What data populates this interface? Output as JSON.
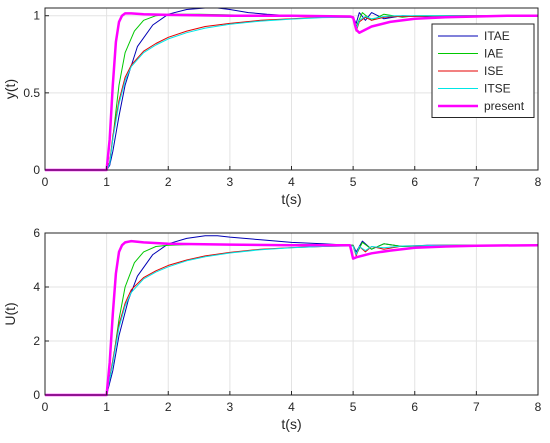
{
  "chart_data": [
    {
      "type": "line",
      "xlabel": "t(s)",
      "ylabel": "y(t)",
      "xlim": [
        0,
        8
      ],
      "ylim": [
        0,
        1.05
      ],
      "xticks": [
        "0",
        "1",
        "2",
        "3",
        "4",
        "5",
        "6",
        "7",
        "8"
      ],
      "yticks": [
        "0",
        "0.5",
        "1"
      ],
      "grid": true,
      "legend": "top-right",
      "series": [
        {
          "name": "ITAE",
          "color": "#0000b4",
          "line_width": "thin",
          "x": [
            0,
            1.0,
            1.05,
            1.1,
            1.2,
            1.3,
            1.5,
            1.75,
            2.0,
            2.3,
            2.6,
            2.8,
            3.0,
            3.3,
            3.6,
            4.0,
            4.5,
            4.95,
            5.0,
            5.05,
            5.1,
            5.2,
            5.3,
            5.5,
            5.8,
            6.2,
            6.6,
            7.0,
            8.0
          ],
          "y": [
            0,
            0,
            0.03,
            0.12,
            0.35,
            0.55,
            0.8,
            0.94,
            1.01,
            1.04,
            1.05,
            1.05,
            1.04,
            1.02,
            1.01,
            1.0,
            0.995,
            0.99,
            0.99,
            0.95,
            1.02,
            0.97,
            1.02,
            0.98,
            1.0,
            0.995,
            1.0,
            1.0,
            1.0
          ]
        },
        {
          "name": "IAE",
          "color": "#00c800",
          "line_width": "thin",
          "x": [
            0,
            1.0,
            1.05,
            1.1,
            1.15,
            1.2,
            1.3,
            1.45,
            1.6,
            1.8,
            2.0,
            2.5,
            3.0,
            3.5,
            4.0,
            4.5,
            4.95,
            5.0,
            5.05,
            5.15,
            5.3,
            5.5,
            5.8,
            6.0,
            6.5,
            7.0,
            8.0
          ],
          "y": [
            0,
            0,
            0.05,
            0.2,
            0.38,
            0.55,
            0.76,
            0.9,
            0.97,
            1.0,
            1.01,
            1.01,
            1.005,
            1.0,
            1.0,
            0.998,
            0.995,
            0.99,
            0.93,
            1.02,
            0.97,
            1.01,
            0.99,
            1.0,
            1.0,
            1.0,
            1.0
          ]
        },
        {
          "name": "ISE",
          "color": "#e60000",
          "line_width": "thin",
          "x": [
            0,
            1.0,
            1.05,
            1.1,
            1.2,
            1.3,
            1.4,
            1.6,
            1.8,
            2.0,
            2.3,
            2.6,
            3.0,
            3.5,
            4.0,
            4.5,
            4.95,
            5.0,
            5.05,
            5.1,
            5.2,
            5.3,
            5.5,
            5.7,
            6.0,
            6.5,
            7.0,
            8.0
          ],
          "y": [
            0,
            0,
            0.05,
            0.22,
            0.45,
            0.6,
            0.68,
            0.77,
            0.82,
            0.86,
            0.9,
            0.93,
            0.95,
            0.97,
            0.98,
            0.99,
            0.99,
            0.985,
            0.9,
            0.96,
            0.99,
            0.97,
            0.99,
            0.995,
            0.995,
            1.0,
            1.0,
            1.0
          ]
        },
        {
          "name": "ITSE",
          "color": "#00e6e6",
          "line_width": "thin",
          "x": [
            0,
            1.0,
            1.05,
            1.1,
            1.2,
            1.3,
            1.4,
            1.6,
            1.8,
            2.0,
            2.3,
            2.6,
            3.0,
            3.5,
            4.0,
            4.5,
            4.95,
            5.0,
            5.05,
            5.1,
            5.2,
            5.3,
            5.5,
            5.7,
            6.0,
            6.5,
            7.0,
            8.0
          ],
          "y": [
            0,
            0,
            0.04,
            0.2,
            0.43,
            0.58,
            0.67,
            0.76,
            0.81,
            0.85,
            0.89,
            0.92,
            0.945,
            0.965,
            0.978,
            0.988,
            0.99,
            0.985,
            0.91,
            0.97,
            0.995,
            0.98,
            0.995,
            1.0,
            1.0,
            1.0,
            1.0,
            1.0
          ]
        },
        {
          "name": "present",
          "color": "#ff00ff",
          "line_width": "thick",
          "x": [
            0,
            1.0,
            1.05,
            1.1,
            1.15,
            1.2,
            1.25,
            1.3,
            1.4,
            1.6,
            2.0,
            3.0,
            4.0,
            4.95,
            5.0,
            5.05,
            5.1,
            5.3,
            5.6,
            6.0,
            6.5,
            7.0,
            7.5,
            8.0
          ],
          "y": [
            0,
            0,
            0.2,
            0.55,
            0.83,
            0.96,
            1.0,
            1.015,
            1.015,
            1.01,
            1.005,
            1.0,
            1.0,
            0.995,
            0.99,
            0.91,
            0.89,
            0.93,
            0.96,
            0.98,
            0.99,
            0.995,
            1.0,
            1.0
          ]
        }
      ]
    },
    {
      "type": "line",
      "xlabel": "t(s)",
      "ylabel": "U(t)",
      "xlim": [
        0,
        8
      ],
      "ylim": [
        0,
        6
      ],
      "xticks": [
        "0",
        "1",
        "2",
        "3",
        "4",
        "5",
        "6",
        "7",
        "8"
      ],
      "yticks": [
        "0",
        "2",
        "4",
        "6"
      ],
      "grid": true,
      "legend": "none",
      "series": [
        {
          "name": "ITAE",
          "color": "#0000b4",
          "line_width": "thin",
          "x": [
            0,
            1.0,
            1.1,
            1.2,
            1.35,
            1.5,
            1.75,
            2.0,
            2.3,
            2.6,
            2.8,
            3.0,
            3.5,
            4.0,
            4.5,
            4.95,
            5.0,
            5.05,
            5.15,
            5.3,
            5.5,
            5.8,
            6.2,
            7.0,
            8.0
          ],
          "y": [
            0,
            0,
            0.9,
            2.2,
            3.5,
            4.4,
            5.2,
            5.6,
            5.8,
            5.9,
            5.9,
            5.85,
            5.75,
            5.65,
            5.6,
            5.55,
            5.55,
            5.3,
            5.7,
            5.4,
            5.6,
            5.5,
            5.55,
            5.55,
            5.55
          ]
        },
        {
          "name": "IAE",
          "color": "#00c800",
          "line_width": "thin",
          "x": [
            0,
            1.0,
            1.1,
            1.2,
            1.3,
            1.45,
            1.6,
            1.8,
            2.0,
            2.5,
            3.0,
            4.0,
            4.95,
            5.0,
            5.05,
            5.15,
            5.3,
            5.5,
            5.8,
            6.5,
            8.0
          ],
          "y": [
            0,
            0,
            1.2,
            2.8,
            4.0,
            4.9,
            5.3,
            5.5,
            5.55,
            5.58,
            5.57,
            5.55,
            5.55,
            5.55,
            5.2,
            5.65,
            5.4,
            5.6,
            5.5,
            5.55,
            5.55
          ]
        },
        {
          "name": "ISE",
          "color": "#e60000",
          "line_width": "thin",
          "x": [
            0,
            1.0,
            1.1,
            1.2,
            1.3,
            1.4,
            1.6,
            1.8,
            2.0,
            2.3,
            2.6,
            3.0,
            3.5,
            4.0,
            4.5,
            4.95,
            5.0,
            5.05,
            5.1,
            5.2,
            5.3,
            5.5,
            5.8,
            6.5,
            8.0
          ],
          "y": [
            0,
            0,
            1.3,
            2.6,
            3.4,
            3.9,
            4.35,
            4.6,
            4.8,
            5.0,
            5.15,
            5.28,
            5.4,
            5.46,
            5.5,
            5.53,
            5.53,
            5.15,
            5.5,
            5.3,
            5.5,
            5.4,
            5.52,
            5.55,
            5.55
          ]
        },
        {
          "name": "ITSE",
          "color": "#00e6e6",
          "line_width": "thin",
          "x": [
            0,
            1.0,
            1.1,
            1.2,
            1.3,
            1.4,
            1.6,
            1.8,
            2.0,
            2.3,
            2.6,
            3.0,
            3.5,
            4.0,
            4.5,
            4.95,
            5.0,
            5.05,
            5.1,
            5.2,
            5.3,
            5.5,
            5.8,
            6.5,
            8.0
          ],
          "y": [
            0,
            0,
            1.2,
            2.5,
            3.3,
            3.8,
            4.3,
            4.55,
            4.75,
            4.97,
            5.12,
            5.26,
            5.38,
            5.45,
            5.5,
            5.52,
            5.52,
            5.2,
            5.5,
            5.35,
            5.5,
            5.45,
            5.52,
            5.55,
            5.55
          ]
        },
        {
          "name": "present",
          "color": "#ff00ff",
          "line_width": "thick",
          "x": [
            0,
            1.0,
            1.05,
            1.1,
            1.15,
            1.2,
            1.25,
            1.3,
            1.4,
            1.6,
            2.0,
            3.0,
            4.0,
            4.95,
            5.0,
            5.05,
            5.3,
            5.6,
            6.0,
            6.5,
            7.0,
            8.0
          ],
          "y": [
            0,
            0,
            1.2,
            3.0,
            4.5,
            5.3,
            5.55,
            5.65,
            5.7,
            5.65,
            5.6,
            5.57,
            5.55,
            5.55,
            5.05,
            5.1,
            5.25,
            5.35,
            5.45,
            5.5,
            5.53,
            5.55
          ]
        }
      ]
    }
  ]
}
